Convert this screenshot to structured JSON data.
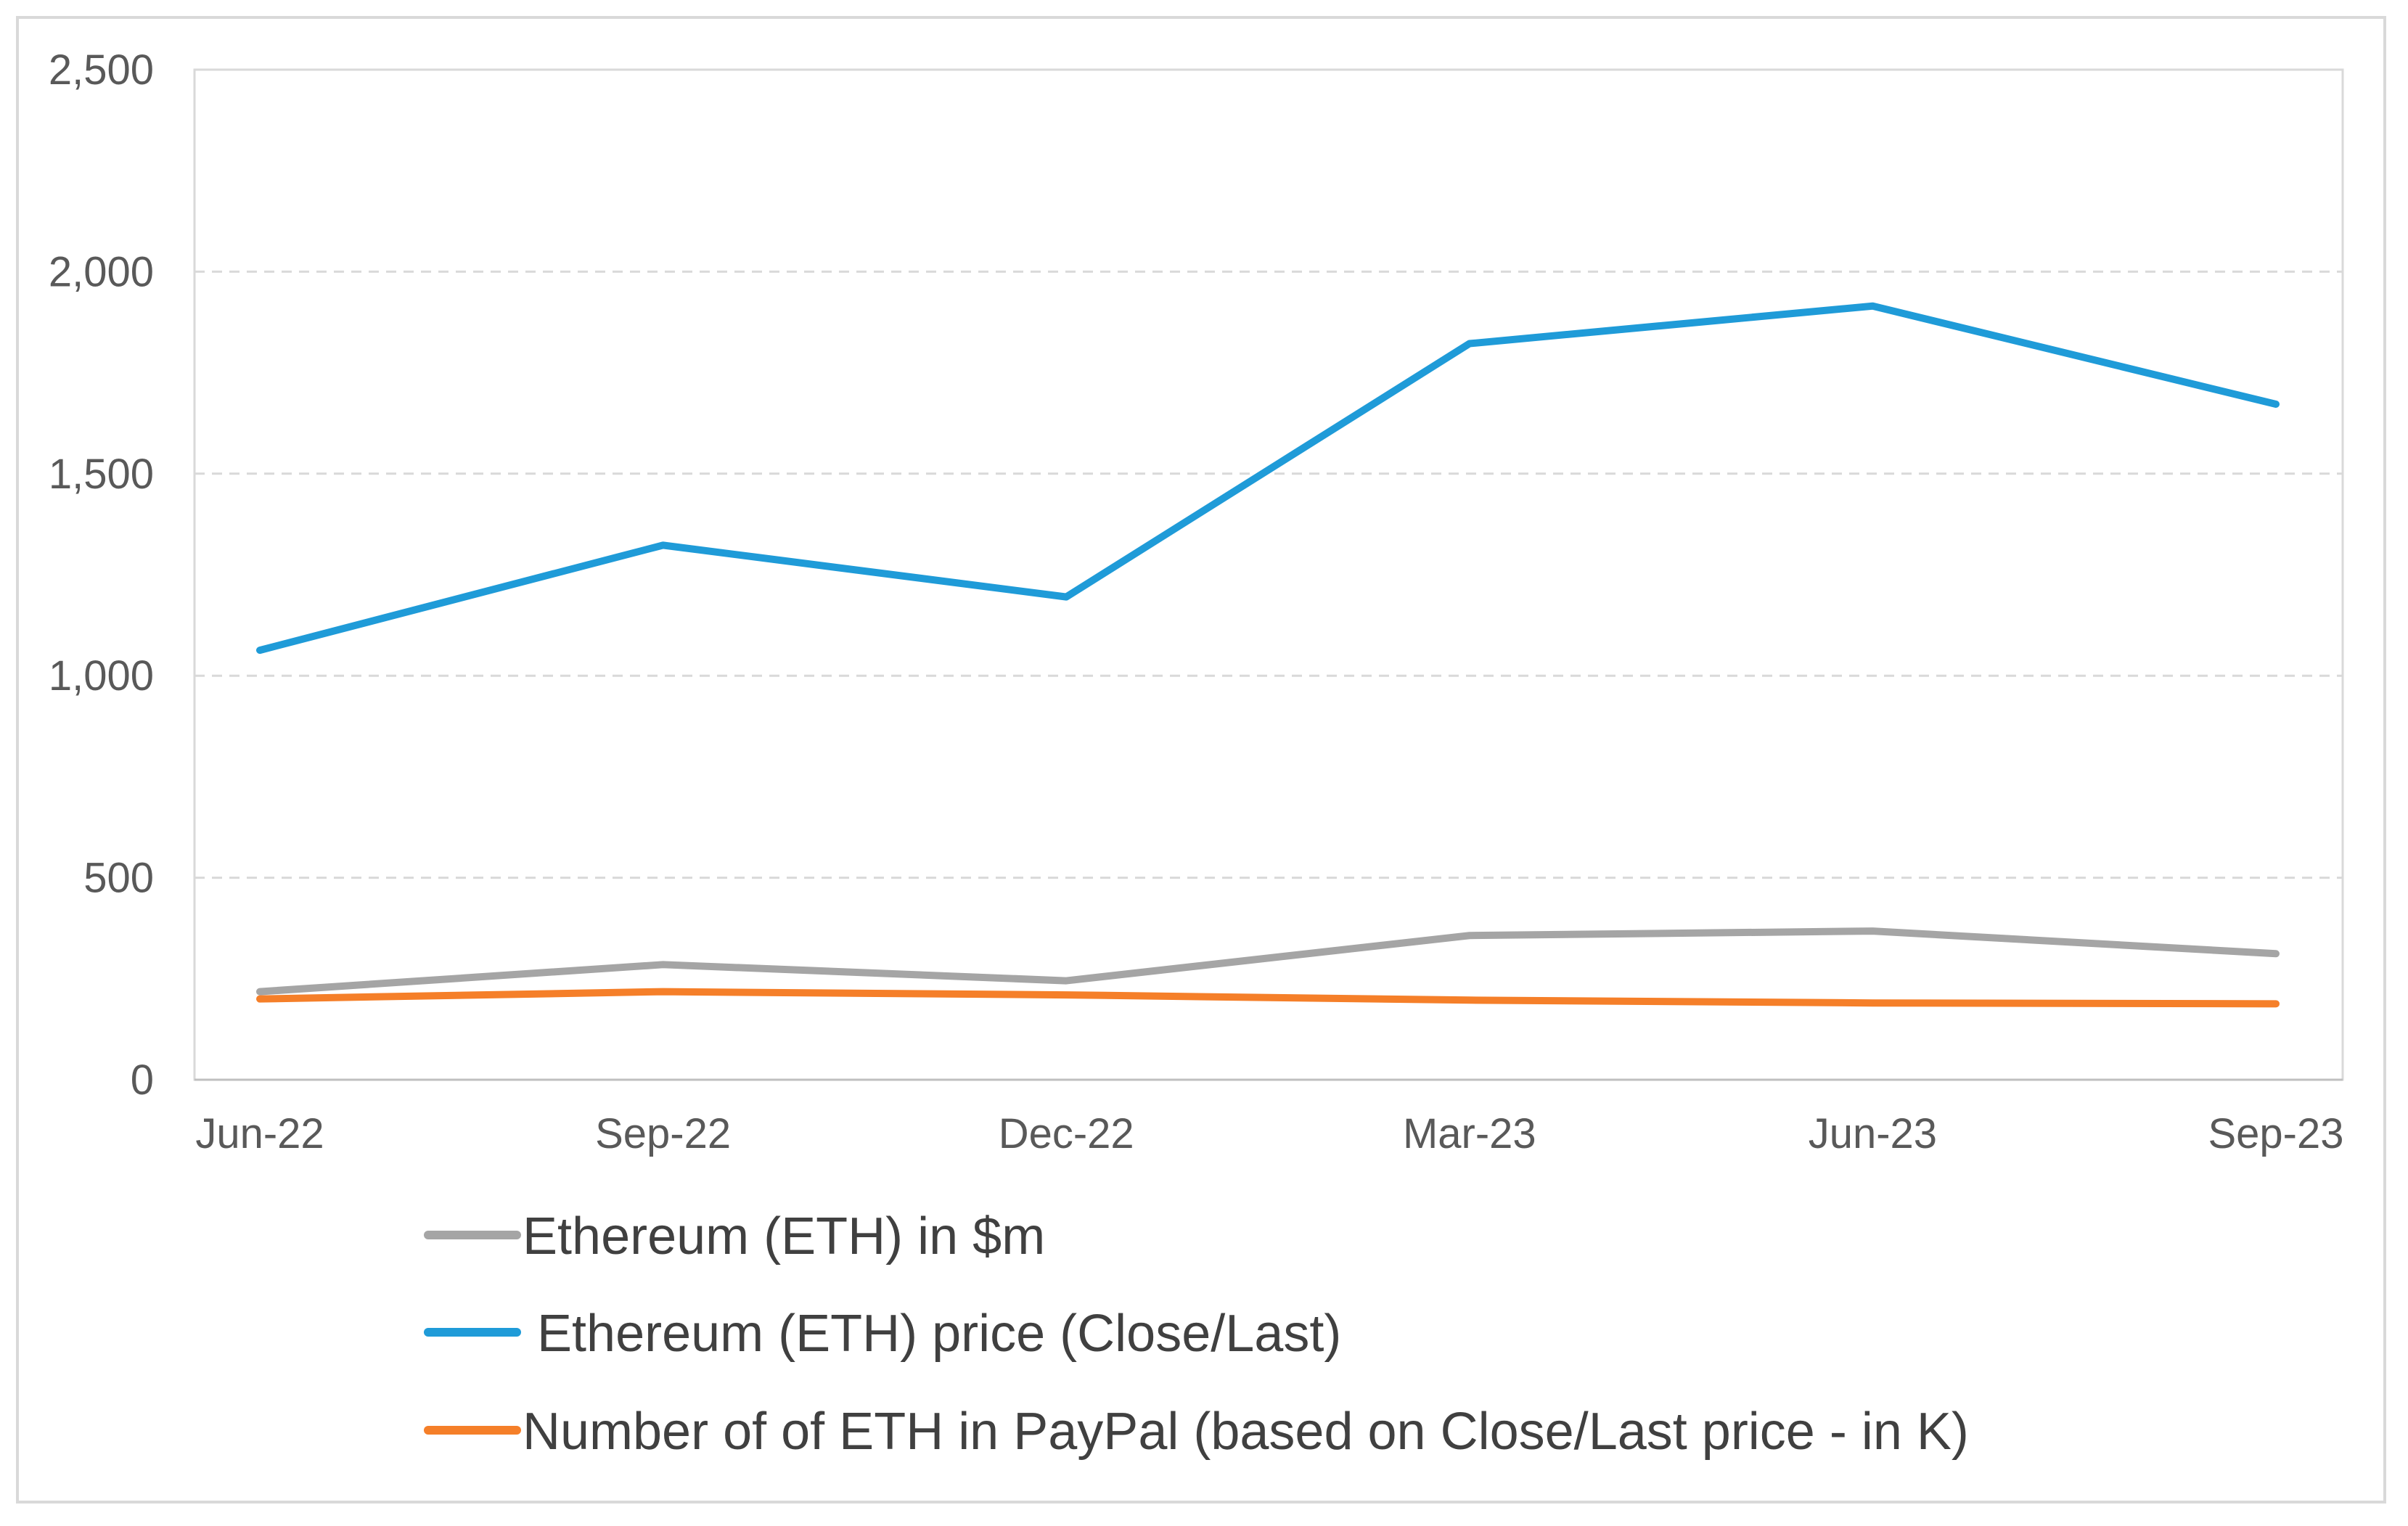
{
  "chart_data": {
    "type": "line",
    "title": "",
    "xlabel": "",
    "ylabel": "",
    "categories": [
      "Jun-22",
      "Sep-22",
      "Dec-22",
      "Mar-23",
      "Jun-23",
      "Sep-23"
    ],
    "ylim": [
      0,
      2500
    ],
    "yticks": [
      0,
      500,
      1000,
      1500,
      2000,
      2500
    ],
    "ytick_labels": [
      "0",
      "500",
      "1,000",
      "1,500",
      "2,000",
      "2,500"
    ],
    "grid": true,
    "legend_position": "bottom",
    "series": [
      {
        "name": "Ethereum (ETH) in $m",
        "color": "#a5a5a5",
        "values": [
          218,
          285,
          245,
          357,
          368,
          312
        ]
      },
      {
        "name": " Ethereum (ETH) price (Close/Last)",
        "color": "#1f9bd8",
        "values": [
          1063,
          1323,
          1195,
          1822,
          1915,
          1672
        ]
      },
      {
        "name": "Number of of ETH in PayPal (based on Close/Last price - in K)",
        "color": "#f57f29",
        "values": [
          200,
          218,
          210,
          197,
          190,
          188
        ]
      }
    ]
  }
}
